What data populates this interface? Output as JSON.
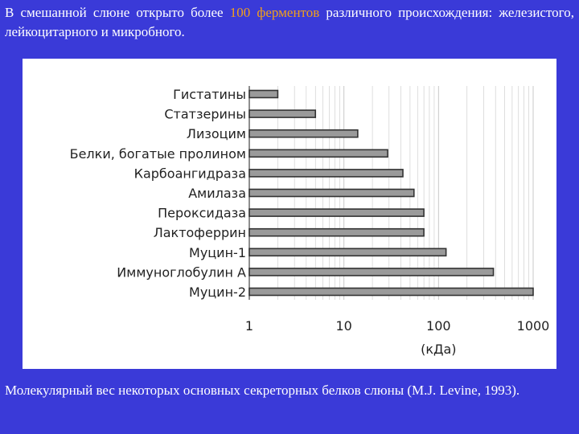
{
  "heading": {
    "part1": "В смешанной слюне открыто более ",
    "accent": "100 ферментов",
    "part2": " различного происхождения: железистого, лейкоцитарного и микробного."
  },
  "caption": "Молекулярный вес некоторых основных секреторных белков слюны (M.J. Levine, 1993).",
  "colors": {
    "background": "#3a3ad8",
    "accent": "#f2a01a",
    "bar_fill": "#9a9a9a",
    "bar_stroke": "#333333",
    "grid": "#c8c8c8"
  },
  "chart_data": {
    "type": "bar",
    "orientation": "horizontal",
    "x_scale": "log",
    "xlim": [
      1,
      1000
    ],
    "xlabel": "(кДа)",
    "x_ticks": [
      "1",
      "10",
      "100",
      "1000"
    ],
    "grid": true,
    "categories": [
      "Гистатины",
      "Статзерины",
      "Лизоцим",
      "Белки, богатые пролином",
      "Карбоангидраза",
      "Амилаза",
      "Пероксидаза",
      "Лактоферрин",
      "Муцин-1",
      "Иммуноглобулин А",
      "Муцин-2"
    ],
    "values": [
      2,
      5,
      14,
      29,
      42,
      55,
      70,
      70,
      120,
      380,
      1000
    ]
  }
}
